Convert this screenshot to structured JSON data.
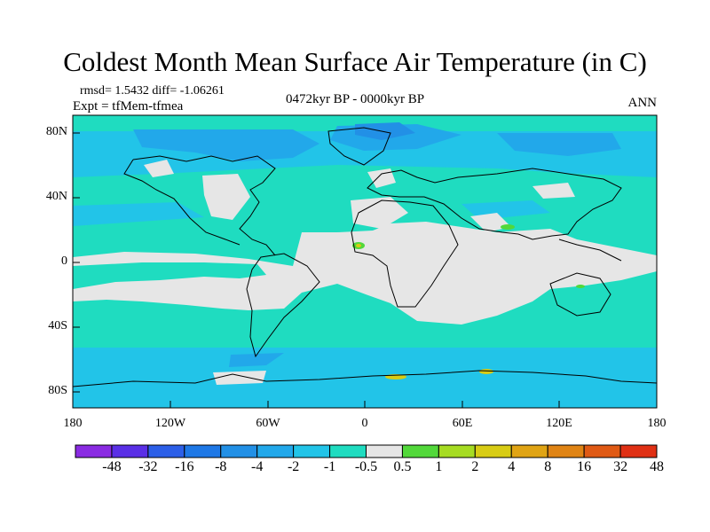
{
  "title": "Coldest Month Mean Surface Air Temperature (in C)",
  "stats_text": "rmsd= 1.5432 diff= -1.06261",
  "expt_text": "Expt = tfMem-tfmea",
  "period_text": "0472kyr BP - 0000kyr BP",
  "season_text": "ANN",
  "lat_labels": [
    "80N",
    "40N",
    "0",
    "40S",
    "80S"
  ],
  "lon_labels": [
    "180",
    "120W",
    "60W",
    "0",
    "60E",
    "120E",
    "180"
  ],
  "colorbar": {
    "labels": [
      "-48",
      "-32",
      "-16",
      "-8",
      "-4",
      "-2",
      "-1",
      "-0.5",
      "0.5",
      "1",
      "2",
      "4",
      "8",
      "16",
      "32",
      "48"
    ],
    "colors": [
      "#8a2be2",
      "#5a2fe6",
      "#2c5fe8",
      "#1e78e6",
      "#2290e6",
      "#22a8ea",
      "#22c4e8",
      "#1fdcc0",
      "#e6e6e6",
      "#52d83a",
      "#a6dc22",
      "#d8cc14",
      "#e0a414",
      "#e08414",
      "#e05a14",
      "#e03014"
    ]
  },
  "map_colors": {
    "ocean_base": "#1fdcc0",
    "minus1": "#22c4e8",
    "minus2": "#22a8ea",
    "minus4": "#2290e6",
    "near_zero": "#e6e6e6",
    "plus1": "#52d83a",
    "plus4": "#d8cc14"
  }
}
